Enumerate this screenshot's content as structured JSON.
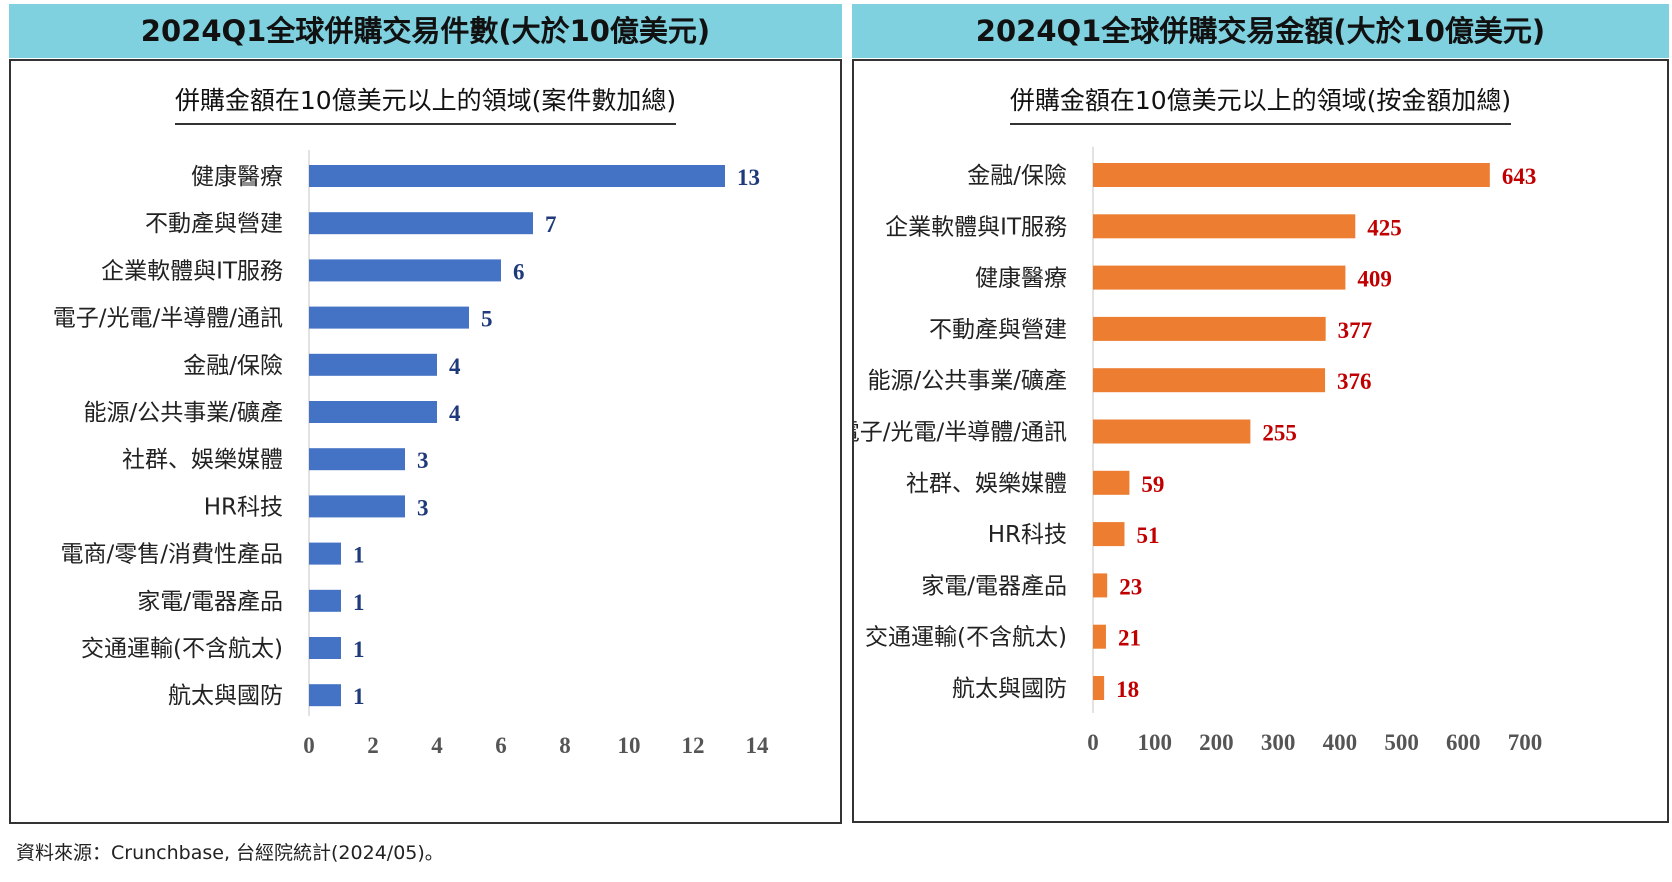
{
  "left_header": "2024Q1全球併購交易件數(大於10億美元)",
  "right_header": "2024Q1全球併購交易金額(大於10億美元)",
  "source": "資料來源：Crunchbase, 台經院統計(2024/05)。",
  "colors": {
    "left_bar": "#4472c4",
    "left_value": "#1f3a7a",
    "right_bar": "#ed7d31",
    "right_value": "#c00000",
    "header_bg": "#7fd1df"
  },
  "chart_data": [
    {
      "type": "bar",
      "orientation": "horizontal",
      "title": "併購金額在10億美元以上的領域(案件數加總)",
      "xlabel": "",
      "ylabel": "",
      "xlim": [
        0,
        14
      ],
      "ticks": [
        0,
        2,
        4,
        6,
        8,
        10,
        12,
        14
      ],
      "grid": false,
      "categories": [
        "健康醫療",
        "不動產與營建",
        "企業軟體與IT服務",
        "電子/光電/半導體/通訊",
        "金融/保險",
        "能源/公共事業/礦產",
        "社群、娛樂媒體",
        "HR科技",
        "電商/零售/消費性產品",
        "家電/電器產品",
        "交通運輸(不含航太)",
        "航太與國防"
      ],
      "values": [
        13,
        7,
        6,
        5,
        4,
        4,
        3,
        3,
        1,
        1,
        1,
        1
      ]
    },
    {
      "type": "bar",
      "orientation": "horizontal",
      "title": "併購金額在10億美元以上的領域(按金額加總)",
      "xlabel": "",
      "ylabel": "",
      "xlim": [
        0,
        700
      ],
      "ticks": [
        0,
        100,
        200,
        300,
        400,
        500,
        600,
        700
      ],
      "grid": false,
      "categories": [
        "金融/保險",
        "企業軟體與IT服務",
        "健康醫療",
        "不動產與營建",
        "能源/公共事業/礦產",
        "電子/光電/半導體/通訊",
        "社群、娛樂媒體",
        "HR科技",
        "家電/電器產品",
        "交通運輸(不含航太)",
        "航太與國防"
      ],
      "values": [
        643,
        425,
        409,
        377,
        376,
        255,
        59,
        51,
        23,
        21,
        18
      ]
    }
  ]
}
